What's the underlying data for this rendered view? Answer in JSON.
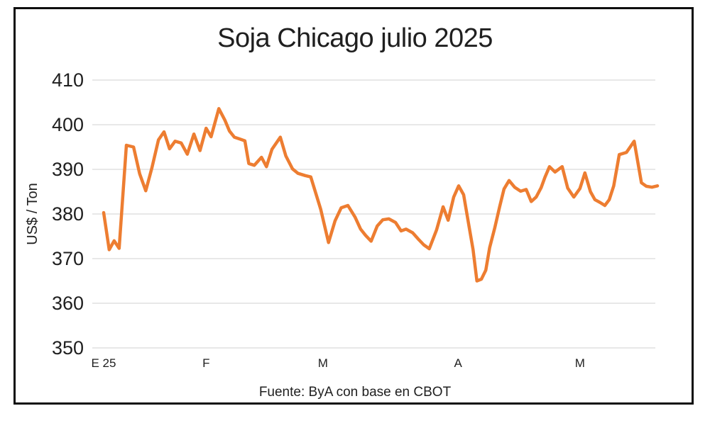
{
  "title": "Soja Chicago julio 2025",
  "footer": "Fuente: ByA con base en CBOT",
  "chart_data": {
    "type": "line",
    "title": "Soja Chicago julio 2025",
    "ylabel": "US$ / Ton",
    "xlabel": "",
    "source_note": "Fuente: ByA con base en CBOT",
    "ylim": [
      350,
      410
    ],
    "y_ticks": [
      410,
      400,
      390,
      380,
      370,
      360,
      350
    ],
    "grid": "horizontal-light",
    "legend": "none",
    "line_color": "#ED7D31",
    "grid_color": "#D9D9D9",
    "x_labels": [
      {
        "label": "E 25",
        "pct": 0
      },
      {
        "label": "F",
        "pct": 18.5
      },
      {
        "label": "M",
        "pct": 39.6
      },
      {
        "label": "A",
        "pct": 64.0
      },
      {
        "label": "M",
        "pct": 86.0
      }
    ],
    "series": [
      {
        "name": "Soja Chicago julio 2025 (US$/Ton)",
        "points": [
          [
            0,
            380.3
          ],
          [
            1.0,
            372.0
          ],
          [
            1.9,
            374.0
          ],
          [
            2.8,
            372.3
          ],
          [
            4.1,
            395.4
          ],
          [
            5.4,
            395.0
          ],
          [
            6.5,
            389.0
          ],
          [
            7.6,
            385.2
          ],
          [
            8.7,
            390.3
          ],
          [
            9.9,
            396.6
          ],
          [
            10.9,
            398.4
          ],
          [
            11.9,
            394.6
          ],
          [
            12.9,
            396.3
          ],
          [
            14.0,
            395.9
          ],
          [
            15.1,
            393.4
          ],
          [
            16.3,
            397.9
          ],
          [
            17.4,
            394.2
          ],
          [
            18.5,
            399.2
          ],
          [
            19.4,
            397.3
          ],
          [
            20.8,
            403.6
          ],
          [
            21.9,
            401.0
          ],
          [
            22.7,
            398.6
          ],
          [
            23.6,
            397.2
          ],
          [
            24.6,
            396.8
          ],
          [
            25.5,
            396.4
          ],
          [
            26.2,
            391.3
          ],
          [
            27.2,
            390.9
          ],
          [
            28.5,
            392.7
          ],
          [
            29.4,
            390.6
          ],
          [
            30.4,
            394.5
          ],
          [
            31.9,
            397.2
          ],
          [
            32.9,
            393.0
          ],
          [
            34.1,
            390.1
          ],
          [
            35.1,
            389.1
          ],
          [
            36.4,
            388.6
          ],
          [
            37.4,
            388.3
          ],
          [
            39.2,
            381.0
          ],
          [
            40.6,
            373.6
          ],
          [
            41.8,
            378.5
          ],
          [
            42.9,
            381.4
          ],
          [
            44.1,
            381.9
          ],
          [
            45.4,
            379.3
          ],
          [
            46.4,
            376.6
          ],
          [
            47.3,
            375.2
          ],
          [
            48.3,
            373.9
          ],
          [
            49.4,
            377.3
          ],
          [
            50.4,
            378.7
          ],
          [
            51.5,
            378.9
          ],
          [
            52.7,
            378.1
          ],
          [
            53.7,
            376.2
          ],
          [
            54.6,
            376.6
          ],
          [
            55.8,
            375.8
          ],
          [
            56.8,
            374.4
          ],
          [
            57.8,
            373.1
          ],
          [
            58.8,
            372.2
          ],
          [
            60.1,
            376.4
          ],
          [
            61.3,
            381.6
          ],
          [
            62.2,
            378.6
          ],
          [
            63.2,
            383.8
          ],
          [
            64.1,
            386.3
          ],
          [
            65.0,
            384.3
          ],
          [
            65.9,
            377.8
          ],
          [
            66.7,
            372.0
          ],
          [
            67.4,
            365.0
          ],
          [
            68.2,
            365.4
          ],
          [
            69.0,
            367.4
          ],
          [
            69.7,
            372.5
          ],
          [
            70.6,
            376.8
          ],
          [
            71.5,
            381.6
          ],
          [
            72.3,
            385.6
          ],
          [
            73.2,
            387.5
          ],
          [
            74.2,
            386.0
          ],
          [
            75.3,
            385.1
          ],
          [
            76.3,
            385.5
          ],
          [
            77.2,
            382.8
          ],
          [
            78.1,
            383.8
          ],
          [
            79.0,
            385.9
          ],
          [
            79.7,
            388.3
          ],
          [
            80.5,
            390.6
          ],
          [
            81.5,
            389.4
          ],
          [
            82.8,
            390.6
          ],
          [
            83.8,
            385.8
          ],
          [
            84.9,
            383.8
          ],
          [
            86.0,
            385.7
          ],
          [
            86.9,
            389.2
          ],
          [
            87.9,
            385.0
          ],
          [
            88.7,
            383.2
          ],
          [
            89.6,
            382.6
          ],
          [
            90.5,
            381.9
          ],
          [
            91.3,
            383.2
          ],
          [
            92.1,
            386.3
          ],
          [
            93.1,
            393.3
          ],
          [
            94.4,
            393.8
          ],
          [
            95.8,
            396.3
          ],
          [
            97.1,
            387.0
          ],
          [
            98.0,
            386.2
          ],
          [
            99.0,
            386.0
          ],
          [
            100,
            386.3
          ]
        ]
      }
    ]
  }
}
